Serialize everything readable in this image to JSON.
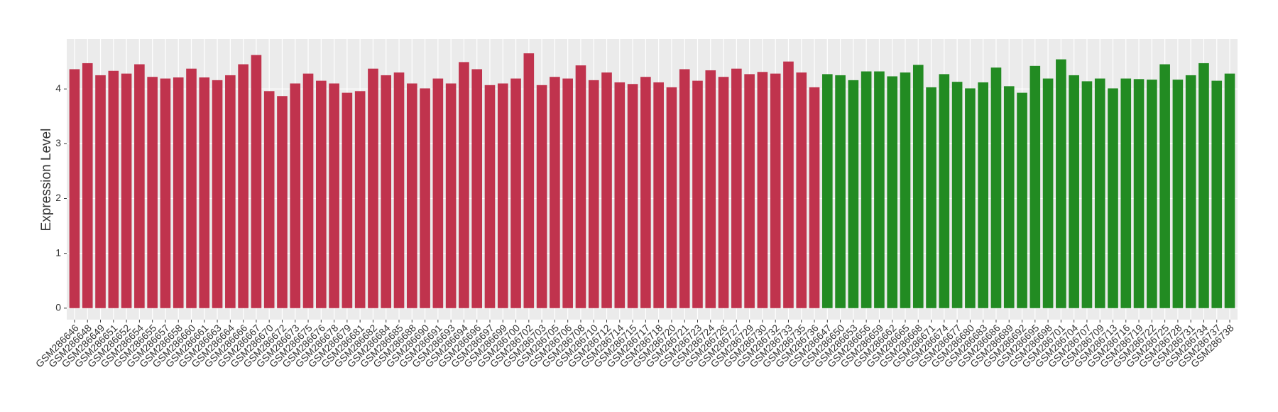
{
  "chart_data": {
    "type": "bar",
    "ylabel": "Expression Level",
    "categories": [
      "GSM286646",
      "GSM286648",
      "GSM286649",
      "GSM286651",
      "GSM286652",
      "GSM286654",
      "GSM286655",
      "GSM286657",
      "GSM286658",
      "GSM286660",
      "GSM286661",
      "GSM286663",
      "GSM286664",
      "GSM286666",
      "GSM286667",
      "GSM286670",
      "GSM286672",
      "GSM286673",
      "GSM286675",
      "GSM286676",
      "GSM286678",
      "GSM286679",
      "GSM286681",
      "GSM286682",
      "GSM286684",
      "GSM286685",
      "GSM286688",
      "GSM286690",
      "GSM286691",
      "GSM286693",
      "GSM286694",
      "GSM286696",
      "GSM286697",
      "GSM286699",
      "GSM286700",
      "GSM286702",
      "GSM286703",
      "GSM286705",
      "GSM286706",
      "GSM286708",
      "GSM286710",
      "GSM286712",
      "GSM286714",
      "GSM286715",
      "GSM286717",
      "GSM286718",
      "GSM286720",
      "GSM286721",
      "GSM286723",
      "GSM286724",
      "GSM286726",
      "GSM286727",
      "GSM286729",
      "GSM286730",
      "GSM286732",
      "GSM286733",
      "GSM286735",
      "GSM286736",
      "GSM286647",
      "GSM286650",
      "GSM286653",
      "GSM286656",
      "GSM286659",
      "GSM286662",
      "GSM286665",
      "GSM286668",
      "GSM286671",
      "GSM286674",
      "GSM286677",
      "GSM286680",
      "GSM286683",
      "GSM286686",
      "GSM286689",
      "GSM286692",
      "GSM286695",
      "GSM286698",
      "GSM286701",
      "GSM286704",
      "GSM286707",
      "GSM286709",
      "GSM286713",
      "GSM286716",
      "GSM286719",
      "GSM286722",
      "GSM286725",
      "GSM286728",
      "GSM286731",
      "GSM286734",
      "GSM286737",
      "GSM286738"
    ],
    "values": [
      4.36,
      4.47,
      4.25,
      4.33,
      4.28,
      4.45,
      4.22,
      4.19,
      4.21,
      4.37,
      4.21,
      4.16,
      4.25,
      4.45,
      4.62,
      3.96,
      3.87,
      4.1,
      4.28,
      4.15,
      4.1,
      3.93,
      3.96,
      4.37,
      4.25,
      4.3,
      4.1,
      4.01,
      4.19,
      4.1,
      4.49,
      4.36,
      4.07,
      4.1,
      4.19,
      4.65,
      4.07,
      4.22,
      4.19,
      4.43,
      4.16,
      4.3,
      4.12,
      4.09,
      4.22,
      4.12,
      4.03,
      4.36,
      4.15,
      4.34,
      4.22,
      4.37,
      4.27,
      4.31,
      4.28,
      4.5,
      4.3,
      4.03,
      4.27,
      4.25,
      4.16,
      4.32,
      4.32,
      4.23,
      4.3,
      4.44,
      4.03,
      4.27,
      4.13,
      4.01,
      4.12,
      4.39,
      4.05,
      3.93,
      4.42,
      4.19,
      4.54,
      4.25,
      4.14,
      4.19,
      4.01,
      4.19,
      4.18,
      4.17,
      4.45,
      4.17,
      4.25,
      4.47,
      4.15,
      4.28
    ],
    "colors": [
      "#c0334d",
      "#c0334d",
      "#c0334d",
      "#c0334d",
      "#c0334d",
      "#c0334d",
      "#c0334d",
      "#c0334d",
      "#c0334d",
      "#c0334d",
      "#c0334d",
      "#c0334d",
      "#c0334d",
      "#c0334d",
      "#c0334d",
      "#c0334d",
      "#c0334d",
      "#c0334d",
      "#c0334d",
      "#c0334d",
      "#c0334d",
      "#c0334d",
      "#c0334d",
      "#c0334d",
      "#c0334d",
      "#c0334d",
      "#c0334d",
      "#c0334d",
      "#c0334d",
      "#c0334d",
      "#c0334d",
      "#c0334d",
      "#c0334d",
      "#c0334d",
      "#c0334d",
      "#c0334d",
      "#c0334d",
      "#c0334d",
      "#c0334d",
      "#c0334d",
      "#c0334d",
      "#c0334d",
      "#c0334d",
      "#c0334d",
      "#c0334d",
      "#c0334d",
      "#c0334d",
      "#c0334d",
      "#c0334d",
      "#c0334d",
      "#c0334d",
      "#c0334d",
      "#c0334d",
      "#c0334d",
      "#c0334d",
      "#c0334d",
      "#c0334d",
      "#c0334d",
      "#228b22",
      "#228b22",
      "#228b22",
      "#228b22",
      "#228b22",
      "#228b22",
      "#228b22",
      "#228b22",
      "#228b22",
      "#228b22",
      "#228b22",
      "#228b22",
      "#228b22",
      "#228b22",
      "#228b22",
      "#228b22",
      "#228b22",
      "#228b22",
      "#228b22",
      "#228b22",
      "#228b22",
      "#228b22",
      "#228b22",
      "#228b22",
      "#228b22",
      "#228b22",
      "#228b22",
      "#228b22",
      "#228b22",
      "#228b22",
      "#228b22",
      "#228b22"
    ],
    "ylim": [
      -0.21,
      4.91
    ],
    "yticks": [
      0,
      1,
      2,
      3,
      4
    ],
    "grid": true
  }
}
